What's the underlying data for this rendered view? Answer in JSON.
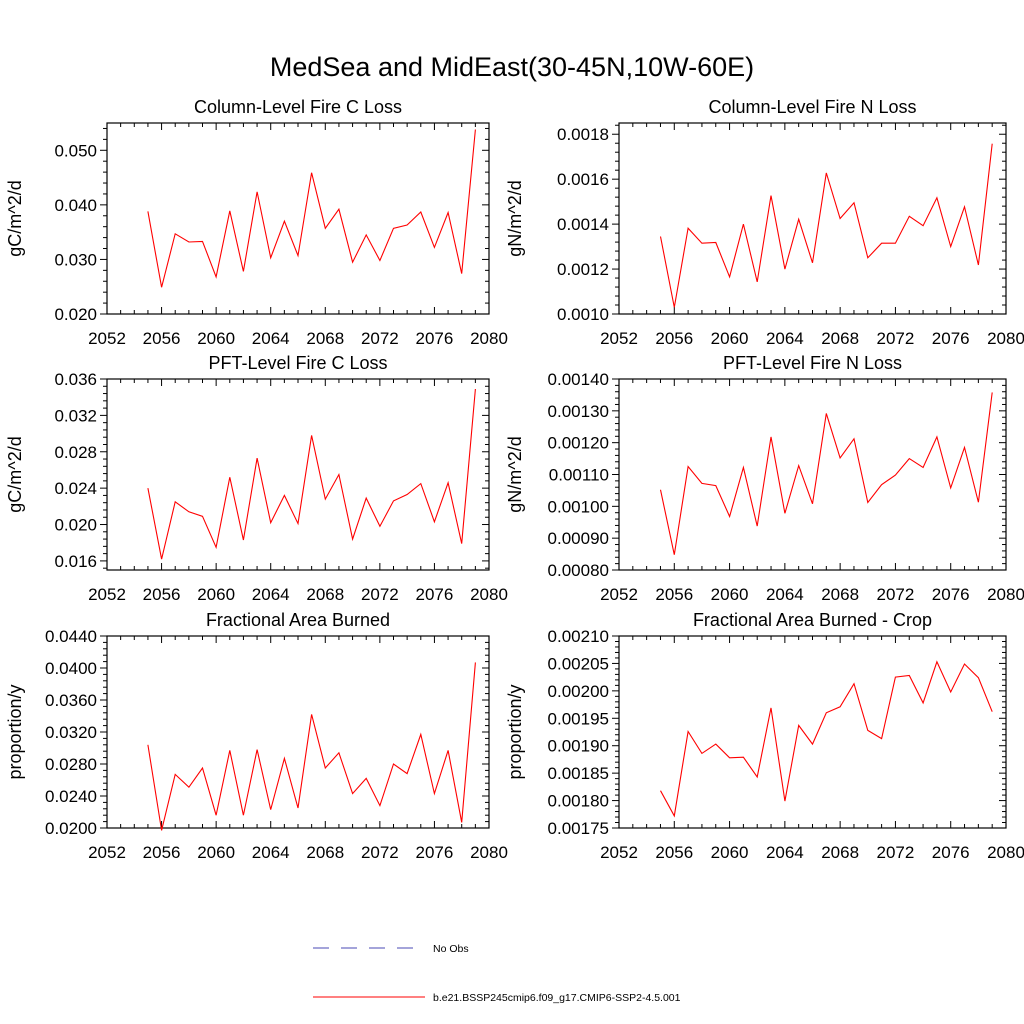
{
  "figure": {
    "title": "MedSea and MidEast(30-45N,10W-60E)"
  },
  "legend": [
    {
      "label": "No Obs",
      "color": "#4a4ab4",
      "dash": true
    },
    {
      "label": "b.e21.BSSP245cmip6.f09_g17.CMIP6-SSP2-4.5.001",
      "color": "#ff0000",
      "dash": false
    }
  ],
  "chart_data": [
    {
      "type": "line",
      "title": "Column-Level Fire C Loss",
      "ylabel": "gC/m^2/d",
      "xlabel": "",
      "xlim": [
        2052,
        2080
      ],
      "ylim": [
        0.02,
        0.055
      ],
      "x_ticks": [
        "2052",
        "2056",
        "2060",
        "2064",
        "2068",
        "2072",
        "2076",
        "2080"
      ],
      "y_ticks": [
        "0.020",
        "0.030",
        "0.040",
        "0.050"
      ],
      "series": [
        {
          "color": "#ff0000",
          "x": [
            2055,
            2056,
            2057,
            2058,
            2059,
            2060,
            2061,
            2062,
            2063,
            2064,
            2065,
            2066,
            2067,
            2068,
            2069,
            2070,
            2071,
            2072,
            2073,
            2074,
            2075,
            2076,
            2077,
            2078,
            2079
          ],
          "values": [
            0.0388,
            0.0249,
            0.0347,
            0.0332,
            0.0333,
            0.0268,
            0.0389,
            0.0278,
            0.0424,
            0.0303,
            0.037,
            0.0307,
            0.0459,
            0.0357,
            0.0392,
            0.0295,
            0.0345,
            0.0298,
            0.0357,
            0.0363,
            0.0387,
            0.0322,
            0.0386,
            0.0274,
            0.0538
          ]
        }
      ]
    },
    {
      "type": "line",
      "title": "Column-Level Fire N Loss",
      "ylabel": "gN/m^2/d",
      "xlabel": "",
      "xlim": [
        2052,
        2080
      ],
      "ylim": [
        0.001,
        0.00185
      ],
      "x_ticks": [
        "2052",
        "2056",
        "2060",
        "2064",
        "2068",
        "2072",
        "2076",
        "2080"
      ],
      "y_ticks": [
        "0.0010",
        "0.0012",
        "0.0014",
        "0.0016",
        "0.0018"
      ],
      "series": [
        {
          "color": "#ff0000",
          "x": [
            2055,
            2056,
            2057,
            2058,
            2059,
            2060,
            2061,
            2062,
            2063,
            2064,
            2065,
            2066,
            2067,
            2068,
            2069,
            2070,
            2071,
            2072,
            2073,
            2074,
            2075,
            2076,
            2077,
            2078,
            2079
          ],
          "values": [
            0.001345,
            0.00103,
            0.001382,
            0.001315,
            0.001318,
            0.001165,
            0.0014,
            0.001143,
            0.001527,
            0.0012,
            0.001422,
            0.001228,
            0.001628,
            0.001425,
            0.001495,
            0.00125,
            0.001315,
            0.001315,
            0.001435,
            0.001393,
            0.001517,
            0.0013,
            0.001477,
            0.001218,
            0.001758
          ]
        }
      ]
    },
    {
      "type": "line",
      "title": "PFT-Level Fire C Loss",
      "ylabel": "gC/m^2/d",
      "xlabel": "",
      "xlim": [
        2052,
        2080
      ],
      "ylim": [
        0.015,
        0.036
      ],
      "x_ticks": [
        "2052",
        "2056",
        "2060",
        "2064",
        "2068",
        "2072",
        "2076",
        "2080"
      ],
      "y_ticks": [
        "0.016",
        "0.020",
        "0.024",
        "0.028",
        "0.032",
        "0.036"
      ],
      "series": [
        {
          "color": "#ff0000",
          "x": [
            2055,
            2056,
            2057,
            2058,
            2059,
            2060,
            2061,
            2062,
            2063,
            2064,
            2065,
            2066,
            2067,
            2068,
            2069,
            2070,
            2071,
            2072,
            2073,
            2074,
            2075,
            2076,
            2077,
            2078,
            2079
          ],
          "values": [
            0.024,
            0.0162,
            0.0225,
            0.0214,
            0.0209,
            0.0175,
            0.0252,
            0.0183,
            0.0273,
            0.0202,
            0.0232,
            0.0201,
            0.0298,
            0.0228,
            0.0255,
            0.0184,
            0.0229,
            0.0198,
            0.0226,
            0.0233,
            0.0245,
            0.0203,
            0.0246,
            0.0179,
            0.0349
          ]
        }
      ]
    },
    {
      "type": "line",
      "title": "PFT-Level Fire N Loss",
      "ylabel": "gN/m^2/d",
      "xlabel": "",
      "xlim": [
        2052,
        2080
      ],
      "ylim": [
        0.0008,
        0.0014
      ],
      "x_ticks": [
        "2052",
        "2056",
        "2060",
        "2064",
        "2068",
        "2072",
        "2076",
        "2080"
      ],
      "y_ticks": [
        "0.00080",
        "0.00090",
        "0.00100",
        "0.00110",
        "0.00120",
        "0.00130",
        "0.00140"
      ],
      "series": [
        {
          "color": "#ff0000",
          "x": [
            2055,
            2056,
            2057,
            2058,
            2059,
            2060,
            2061,
            2062,
            2063,
            2064,
            2065,
            2066,
            2067,
            2068,
            2069,
            2070,
            2071,
            2072,
            2073,
            2074,
            2075,
            2076,
            2077,
            2078,
            2079
          ],
          "values": [
            0.001052,
            0.000848,
            0.001125,
            0.001072,
            0.001065,
            0.000968,
            0.001122,
            0.000938,
            0.001218,
            0.000978,
            0.001128,
            0.001008,
            0.001292,
            0.001152,
            0.001212,
            0.001012,
            0.001068,
            0.001098,
            0.00115,
            0.001122,
            0.001218,
            0.001058,
            0.001185,
            0.001013,
            0.001358
          ]
        }
      ]
    },
    {
      "type": "line",
      "title": "Fractional Area Burned",
      "ylabel": "proportion/y",
      "xlabel": "",
      "xlim": [
        2052,
        2080
      ],
      "ylim": [
        0.02,
        0.044
      ],
      "x_ticks": [
        "2052",
        "2056",
        "2060",
        "2064",
        "2068",
        "2072",
        "2076",
        "2080"
      ],
      "y_ticks": [
        "0.0200",
        "0.0240",
        "0.0280",
        "0.0320",
        "0.0360",
        "0.0400",
        "0.0440"
      ],
      "series": [
        {
          "color": "#ff0000",
          "x": [
            2055,
            2056,
            2057,
            2058,
            2059,
            2060,
            2061,
            2062,
            2063,
            2064,
            2065,
            2066,
            2067,
            2068,
            2069,
            2070,
            2071,
            2072,
            2073,
            2074,
            2075,
            2076,
            2077,
            2078,
            2079
          ],
          "values": [
            0.0304,
            0.0197,
            0.0267,
            0.0251,
            0.0275,
            0.0216,
            0.0297,
            0.0216,
            0.0298,
            0.0223,
            0.0287,
            0.0225,
            0.0342,
            0.0275,
            0.0294,
            0.0243,
            0.0262,
            0.0228,
            0.028,
            0.0268,
            0.0317,
            0.0243,
            0.0297,
            0.0207,
            0.0407
          ]
        }
      ]
    },
    {
      "type": "line",
      "title": "Fractional Area Burned - Crop",
      "ylabel": "proportion/y",
      "xlabel": "",
      "xlim": [
        2052,
        2080
      ],
      "ylim": [
        0.00175,
        0.0021
      ],
      "x_ticks": [
        "2052",
        "2056",
        "2060",
        "2064",
        "2068",
        "2072",
        "2076",
        "2080"
      ],
      "y_ticks": [
        "0.00175",
        "0.00180",
        "0.00185",
        "0.00190",
        "0.00195",
        "0.00200",
        "0.00205",
        "0.00210"
      ],
      "series": [
        {
          "color": "#ff0000",
          "x": [
            2055,
            2056,
            2057,
            2058,
            2059,
            2060,
            2061,
            2062,
            2063,
            2064,
            2065,
            2066,
            2067,
            2068,
            2069,
            2070,
            2071,
            2072,
            2073,
            2074,
            2075,
            2076,
            2077,
            2078,
            2079
          ],
          "values": [
            0.001818,
            0.001772,
            0.001926,
            0.001886,
            0.001903,
            0.001878,
            0.001879,
            0.001843,
            0.001969,
            0.001799,
            0.001937,
            0.001903,
            0.00196,
            0.001971,
            0.002013,
            0.001928,
            0.001913,
            0.002025,
            0.002028,
            0.001978,
            0.002053,
            0.001998,
            0.002049,
            0.002024,
            0.001962
          ]
        }
      ]
    }
  ]
}
